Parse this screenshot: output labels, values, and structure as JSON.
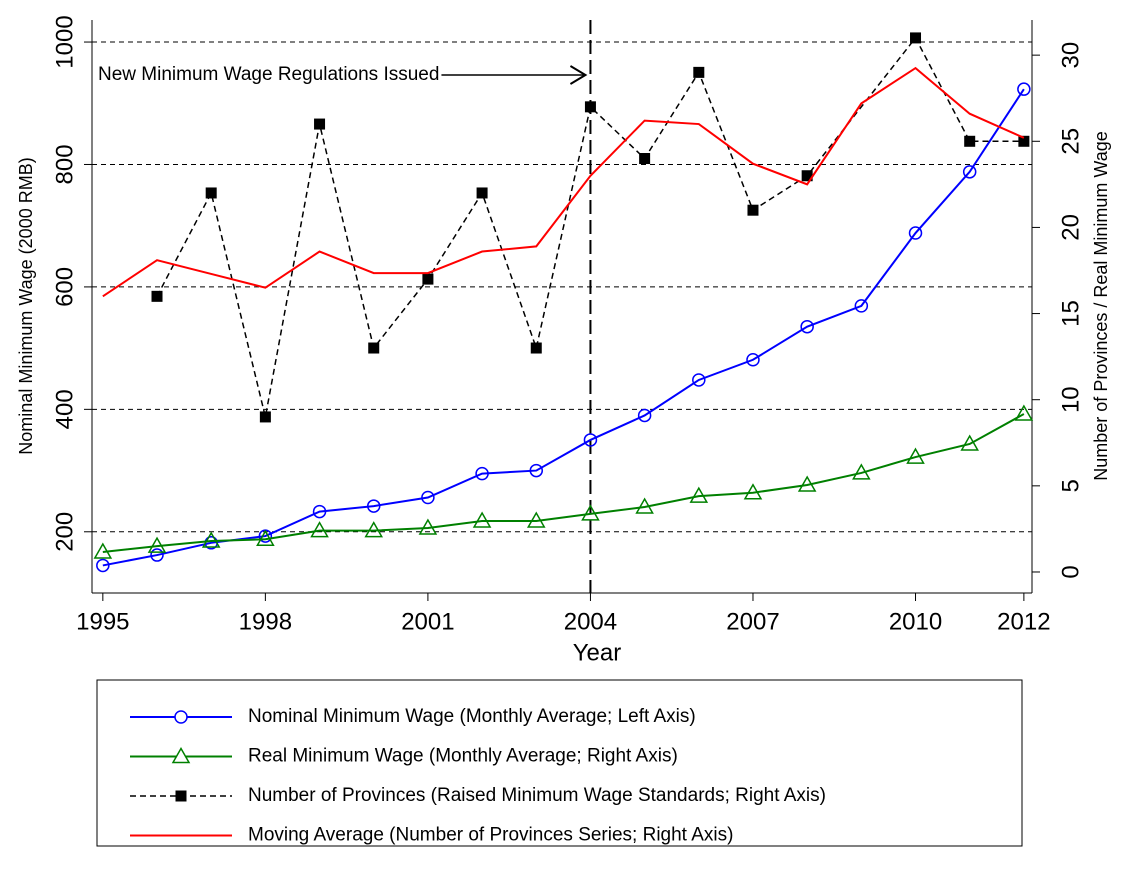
{
  "chart_data": {
    "type": "line",
    "x_label": "Year",
    "y_label": "Nominal Minimum Wage (2000 RMB)",
    "y2_label": "Number of Provinces / Real Minimum Wage",
    "annotation": "New Minimum Wage Regulations Issued",
    "vline": 2004,
    "xlim": [
      1994.8,
      2012.15
    ],
    "xticks": [
      1995,
      1998,
      2001,
      2004,
      2007,
      2010,
      2012
    ],
    "ylim": [
      100,
      1036
    ],
    "yticks": [
      200,
      400,
      600,
      800,
      1000
    ],
    "y2lim": [
      -1.22,
      32.04
    ],
    "y2ticks": [
      0,
      5,
      10,
      15,
      20,
      25,
      30
    ],
    "grid": true,
    "series": [
      {
        "name": "Nominal Minimum Wage (Monthly Average; Left Axis)",
        "color": "#0000ff",
        "marker": "circle",
        "dash": false,
        "x": [
          1995,
          1996,
          1997,
          1998,
          1999,
          2000,
          2001,
          2002,
          2003,
          2004,
          2005,
          2006,
          2007,
          2008,
          2009,
          2010,
          2011,
          2012
        ],
        "values": [
          145,
          162,
          182,
          193,
          233,
          242,
          256,
          295,
          300,
          350,
          390,
          448,
          481,
          535,
          569,
          688,
          788,
          923
        ]
      },
      {
        "name": "Real Minimum Wage (Monthly Average; Right Axis)",
        "color": "#008000",
        "marker": "triangle",
        "dash": false,
        "axis": "y2",
        "x": [
          1995,
          1996,
          1997,
          1998,
          1999,
          2000,
          2001,
          2002,
          2003,
          2004,
          2005,
          2006,
          2007,
          2008,
          2009,
          2010,
          2011,
          2012
        ],
        "values": [
          1.16,
          1.5,
          1.8,
          1.9,
          2.4,
          2.4,
          2.55,
          2.96,
          2.96,
          3.37,
          3.77,
          4.4,
          4.6,
          5.05,
          5.75,
          6.67,
          7.43,
          9.17
        ]
      },
      {
        "name": "Number of Provinces (Raised Minimum Wage Standards; Right Axis)",
        "color": "#000000",
        "marker": "square",
        "dash": true,
        "axis": "y2",
        "x": [
          1996,
          1997,
          1998,
          1999,
          2000,
          2001,
          2002,
          2003,
          2004,
          2005,
          2006,
          2007,
          2008,
          2010,
          2011,
          2012
        ],
        "values": [
          16,
          22,
          9,
          26,
          13,
          17,
          22,
          13,
          27,
          24,
          29,
          21,
          23,
          31,
          25,
          25
        ]
      },
      {
        "name": "Moving Average (Number of Provinces Series; Right Axis)",
        "color": "#ff0000",
        "marker": "none",
        "dash": false,
        "axis": "y2",
        "x": [
          1995,
          1996,
          1997,
          1998,
          1999,
          2000,
          2001,
          2002,
          2003,
          2004,
          2005,
          2006,
          2007,
          2008,
          2009,
          2010,
          2011,
          2012
        ],
        "values": [
          16,
          18.1,
          17.3,
          16.5,
          18.6,
          17.35,
          17.35,
          18.6,
          18.9,
          23,
          26.2,
          26,
          23.7,
          22.5,
          27.2,
          29.25,
          26.6,
          25.2
        ]
      }
    ]
  }
}
